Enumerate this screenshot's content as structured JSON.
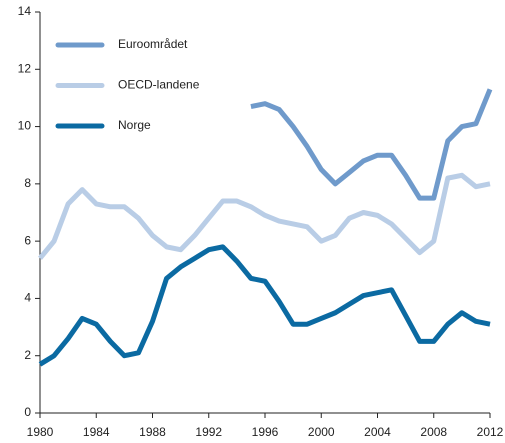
{
  "chart_data": {
    "type": "line",
    "x": [
      1980,
      1981,
      1982,
      1983,
      1984,
      1985,
      1986,
      1987,
      1988,
      1989,
      1990,
      1991,
      1992,
      1993,
      1994,
      1995,
      1996,
      1997,
      1998,
      1999,
      2000,
      2001,
      2002,
      2003,
      2004,
      2005,
      2006,
      2007,
      2008,
      2009,
      2010,
      2011,
      2012
    ],
    "series": [
      {
        "name": "Euroområdet",
        "color": "#6f9acb",
        "values": [
          null,
          null,
          null,
          null,
          null,
          null,
          null,
          null,
          null,
          null,
          null,
          null,
          null,
          null,
          null,
          10.7,
          10.8,
          10.6,
          10.0,
          9.3,
          8.5,
          8.0,
          8.4,
          8.8,
          9.0,
          9.0,
          8.3,
          7.5,
          7.5,
          9.5,
          10.0,
          10.1,
          11.3
        ]
      },
      {
        "name": "OECD-landene",
        "color": "#b9cde6",
        "values": [
          5.4,
          6.0,
          7.3,
          7.8,
          7.3,
          7.2,
          7.2,
          6.8,
          6.2,
          5.8,
          5.7,
          6.2,
          6.8,
          7.4,
          7.4,
          7.2,
          6.9,
          6.7,
          6.6,
          6.5,
          6.0,
          6.2,
          6.8,
          7.0,
          6.9,
          6.6,
          6.1,
          5.6,
          6.0,
          8.2,
          8.3,
          7.9,
          8.0
        ]
      },
      {
        "name": "Norge",
        "color": "#0b6aa2",
        "values": [
          1.7,
          2.0,
          2.6,
          3.3,
          3.1,
          2.5,
          2.0,
          2.1,
          3.2,
          4.7,
          5.1,
          5.4,
          5.7,
          5.8,
          5.3,
          4.7,
          4.6,
          3.9,
          3.1,
          3.1,
          3.3,
          3.5,
          3.8,
          4.1,
          4.2,
          4.3,
          3.4,
          2.5,
          2.5,
          3.1,
          3.5,
          3.2,
          3.1
        ]
      }
    ],
    "xlim": [
      1980,
      2012
    ],
    "xticks": [
      1980,
      1984,
      1988,
      1992,
      1996,
      2000,
      2004,
      2008,
      2012
    ],
    "ylim": [
      0,
      14
    ],
    "yticks": [
      0,
      2,
      4,
      6,
      8,
      10,
      12,
      14
    ],
    "legend": "upper left"
  }
}
